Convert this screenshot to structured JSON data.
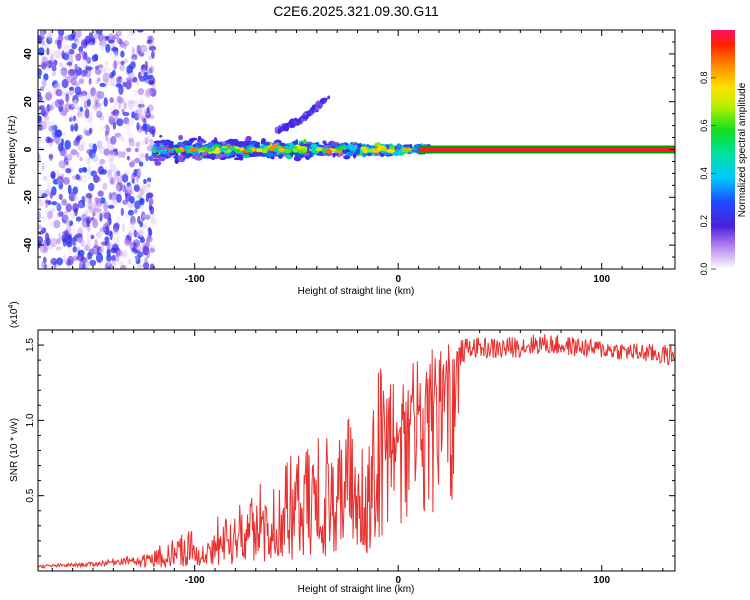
{
  "title": "C2E6.2025.321.09.30.G11",
  "chart_data": [
    {
      "type": "heatmap",
      "xlabel": "Height of straight line (km)",
      "ylabel": "Frequency (Hz)",
      "xlim": [
        -177,
        136
      ],
      "ylim": [
        -50,
        50
      ],
      "xticks": [
        -100,
        0,
        100
      ],
      "yticks": [
        -40,
        -20,
        0,
        20,
        40
      ],
      "colorbar": {
        "label": "Normalized spectral amplitude",
        "range": [
          0,
          1
        ],
        "ticks": [
          0.0,
          0.2,
          0.4,
          0.6,
          0.8
        ],
        "tick_labels": [
          "0.0",
          "0.2",
          "0.4",
          "0.6",
          "0.8"
        ]
      },
      "features": {
        "noise_band_x": [
          -177,
          -120
        ],
        "main_line": {
          "x_start": 10,
          "x_end": 136,
          "frequency": 0,
          "amplitude": 0.97
        },
        "scatter_ridge_x": [
          -120,
          15
        ],
        "upper_branch": [
          [
            -60,
            8
          ],
          [
            -48,
            12
          ],
          [
            -34,
            22
          ]
        ]
      }
    },
    {
      "type": "line",
      "xlabel": "Height of straight line (km)",
      "ylabel": "SNR (10 * v/v)",
      "yscale_label": "(x10",
      "yscale_exp": "4",
      "xlim": [
        -177,
        136
      ],
      "ylim": [
        0,
        1.6
      ],
      "xticks": [
        -100,
        0,
        100
      ],
      "yticks": [
        0.5,
        1.0,
        1.5
      ],
      "ytick_labels": [
        "0.5",
        "1.0",
        "1.5"
      ],
      "color": "#e8302e",
      "envelope": {
        "x": [
          -177,
          -150,
          -125,
          -110,
          -90,
          -70,
          -50,
          -30,
          -15,
          -5,
          5,
          20,
          35,
          50,
          70,
          90,
          110,
          136
        ],
        "base": [
          0.02,
          0.03,
          0.05,
          0.08,
          0.12,
          0.18,
          0.25,
          0.33,
          0.4,
          0.72,
          0.95,
          1.22,
          1.42,
          1.4,
          1.44,
          1.42,
          1.4,
          1.36
        ],
        "peak": [
          0.04,
          0.06,
          0.12,
          0.22,
          0.35,
          0.55,
          0.8,
          1.02,
          1.22,
          1.44,
          1.38,
          1.5,
          1.55,
          1.55,
          1.58,
          1.55,
          1.52,
          1.5
        ]
      }
    }
  ]
}
